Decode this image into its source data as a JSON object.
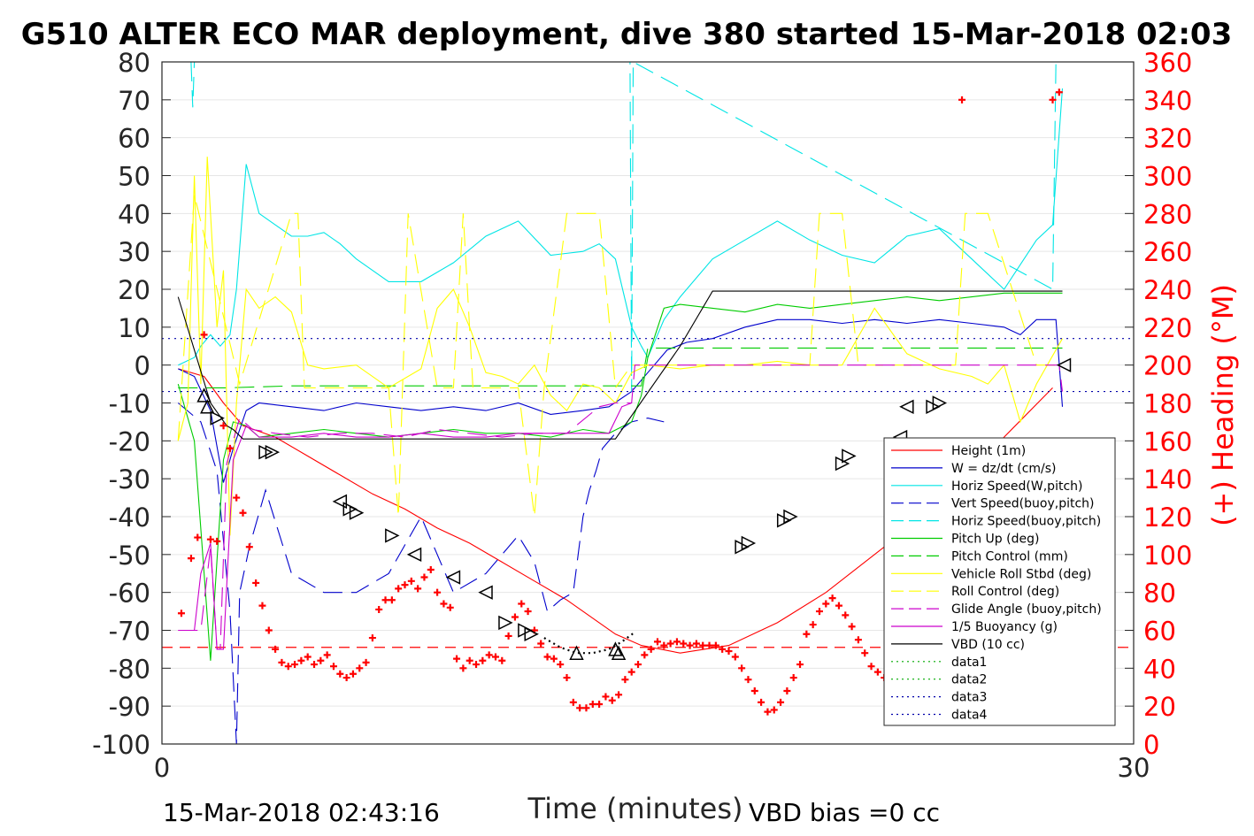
{
  "figure": {
    "title": "G510 ALTER ECO MAR deployment, dive 380 started 15-Mar-2018 02:03",
    "footer_left": "15-Mar-2018 02:43:16",
    "footer_right": "VBD bias =0 cc"
  },
  "colors": {
    "height": "#ff0000",
    "w": "#0000cc",
    "horiz_w": "#00e5e5",
    "vert_buoy": "#0000cc",
    "horiz_buoy": "#00e5e5",
    "pitch": "#00cc00",
    "pitch_ctrl": "#00cc00",
    "roll": "#ffff00",
    "roll_ctrl": "#ffff00",
    "glide": "#cc00cc",
    "buoy": "#cc00cc",
    "vbd": "#000000",
    "heading": "#ff0000",
    "right_axis": "#ff0000"
  },
  "chart_data": {
    "type": "line",
    "title": "G510 ALTER ECO MAR deployment, dive 380 started 15-Mar-2018 02:03",
    "xlabel": "Time (minutes)",
    "ylabel_right": "(+) Heading (°M)",
    "xlim": [
      0,
      30
    ],
    "ylim": [
      -100,
      80
    ],
    "y2lim": [
      0,
      360
    ],
    "xticks": [
      "0",
      "30"
    ],
    "yticks": [
      "80",
      "70",
      "60",
      "50",
      "40",
      "30",
      "20",
      "10",
      "0",
      "-10",
      "-20",
      "-30",
      "-40",
      "-50",
      "-60",
      "-70",
      "-80",
      "-90",
      "-100"
    ],
    "y2ticks": [
      "360",
      "340",
      "320",
      "300",
      "280",
      "260",
      "240",
      "220",
      "200",
      "180",
      "160",
      "140",
      "120",
      "100",
      "80",
      "60",
      "40",
      "20",
      "0"
    ],
    "grid": "horizontal",
    "legend_position": "right",
    "series": [
      {
        "name": "Height (1m)",
        "key": "height",
        "dash": "",
        "x": [
          0.5,
          1.3,
          1.9,
          2.5,
          3.5,
          4.5,
          5.5,
          6.5,
          7.5,
          8.5,
          9.5,
          10.5,
          11.5,
          12.5,
          13.5,
          14.0,
          14.8,
          16.0,
          17.5,
          19.0,
          20.5,
          22.0,
          23.5,
          25.0,
          26.0,
          27.5
        ],
        "y": [
          -1,
          -3,
          -10,
          -16,
          -19,
          -24,
          -29,
          -34,
          -38,
          -43,
          -47,
          -52,
          -57,
          -62,
          -68,
          -71,
          -74,
          -76,
          -74,
          -68,
          -60,
          -50,
          -40,
          -29,
          -19,
          -6
        ]
      },
      {
        "name": "W = dz/dt (cm/s)",
        "key": "w",
        "dash": "",
        "x": [
          0.5,
          1.0,
          1.5,
          1.9,
          2.2,
          2.6,
          3.0,
          4.0,
          5.0,
          6.0,
          7.0,
          8.0,
          9.0,
          10.0,
          11.0,
          12.0,
          13.0,
          13.8,
          14.5,
          15.0,
          15.6,
          16.2,
          17.0,
          18.0,
          19.0,
          20.0,
          21.0,
          22.0,
          23.0,
          24.0,
          25.0,
          26.0,
          26.5,
          27.0,
          27.6,
          27.8
        ],
        "y": [
          -1,
          -3,
          -12,
          -31,
          -22,
          -12,
          -10,
          -11,
          -12,
          -10,
          -11,
          -12,
          -11,
          -12,
          -10,
          -13,
          -12,
          -11,
          -7,
          -2,
          4,
          6,
          7,
          10,
          12,
          12,
          11,
          12,
          11,
          12,
          11,
          10,
          8,
          12,
          12,
          -11
        ]
      },
      {
        "name": "Horiz Speed(W,pitch)",
        "key": "horiz_w",
        "dash": "",
        "x": [
          0.5,
          1.0,
          1.2,
          1.5,
          1.8,
          2.1,
          2.3,
          2.6,
          3.0,
          3.5,
          4.0,
          4.5,
          5.0,
          5.5,
          6.0,
          7.0,
          8.0,
          9.0,
          10.0,
          11.0,
          12.0,
          13.0,
          13.5,
          14.0,
          14.5,
          14.8,
          15.0,
          15.5,
          16.0,
          17.0,
          18.0,
          19.0,
          20.0,
          21.0,
          22.0,
          23.0,
          24.0,
          25.0,
          26.0,
          27.0,
          27.5,
          27.8
        ],
        "y": [
          0,
          2,
          5,
          8,
          5,
          8,
          20,
          53,
          40,
          37,
          34,
          34,
          35,
          32,
          28,
          22,
          22,
          27,
          34,
          38,
          29,
          30,
          32,
          28,
          10,
          5,
          2,
          12,
          18,
          28,
          33,
          38,
          33,
          29,
          27,
          34,
          36,
          28,
          20,
          33,
          37,
          73
        ]
      },
      {
        "name": "Vert Speed(buoy,pitch)",
        "key": "vert_buoy",
        "dash": "22,10",
        "x": [
          0.5,
          1.2,
          1.7,
          2.1,
          2.3,
          2.4,
          2.7,
          3.2,
          4.0,
          5.0,
          6.0,
          7.0,
          8.0,
          9.0,
          10.0,
          11.0,
          11.5,
          11.9,
          12.3,
          12.7,
          13.0,
          13.2,
          13.4,
          13.6,
          14.0,
          14.5,
          15.0,
          15.5
        ],
        "y": [
          -10,
          -15,
          -28,
          -65,
          -100,
          -60,
          -48,
          -33,
          -55,
          -60,
          -60,
          -55,
          -40,
          -60,
          -55,
          -45,
          -52,
          -65,
          -62,
          -60,
          -40,
          -33,
          -28,
          -22,
          -18,
          -15,
          -14,
          -15
        ]
      },
      {
        "name": "Horiz Speed(buoy,pitch)",
        "key": "horiz_buoy",
        "dash": "22,10",
        "x": [
          0.9,
          0.95,
          1.0,
          14.45,
          14.5,
          14.55,
          27.5,
          27.6
        ],
        "y": [
          80,
          68,
          80,
          80,
          -7,
          80,
          20,
          80
        ]
      },
      {
        "name": "Pitch Up (deg)",
        "key": "pitch",
        "dash": "",
        "x": [
          0.5,
          1.0,
          1.5,
          1.9,
          2.2,
          2.6,
          3.0,
          4.0,
          5.0,
          6.0,
          7.0,
          8.0,
          9.0,
          10.0,
          11.0,
          12.0,
          13.0,
          13.8,
          14.5,
          14.8,
          15.0,
          15.5,
          16.0,
          17.0,
          18.0,
          19.0,
          20.0,
          21.0,
          22.0,
          23.0,
          24.0,
          25.0,
          26.0,
          27.0,
          27.8
        ],
        "y": [
          -5,
          -20,
          -78,
          -25,
          -15,
          -16,
          -19,
          -18,
          -17,
          -18,
          -19,
          -18,
          -17,
          -18,
          -18,
          -19,
          -17,
          -18,
          -15,
          -8,
          2,
          15,
          16,
          15,
          14,
          16,
          15,
          16,
          17,
          18,
          17,
          18,
          19,
          19,
          19
        ]
      },
      {
        "name": "Pitch Control (mm)",
        "key": "pitch_ctrl",
        "dash": "22,10",
        "x": [
          0.5,
          2.0,
          4.0,
          8.0,
          12.0,
          14.8,
          15.0,
          20.0,
          27.8
        ],
        "y": [
          -6,
          -6,
          -5.5,
          -5.5,
          -5.5,
          -5.5,
          4.5,
          4.5,
          4.5
        ]
      },
      {
        "name": "Vehicle Roll Stbd (deg)",
        "key": "roll",
        "dash": "",
        "x": [
          0.5,
          0.8,
          1.0,
          1.2,
          1.4,
          1.7,
          1.9,
          2.1,
          2.3,
          2.6,
          3.0,
          3.5,
          4.0,
          4.5,
          5.0,
          6.0,
          7.0,
          8.0,
          8.5,
          9.0,
          9.5,
          10.0,
          10.5,
          11.0,
          11.5,
          12.0,
          12.5,
          13.0,
          13.5,
          14.0,
          14.5,
          15.0,
          16.0,
          17.0,
          18.0,
          19.0,
          20.0,
          21.0,
          22.0,
          23.0,
          24.0,
          25.0,
          25.5,
          26.0,
          26.5,
          27.0,
          27.8
        ],
        "y": [
          -20,
          -10,
          50,
          -5,
          55,
          10,
          25,
          -45,
          -10,
          20,
          15,
          18,
          14,
          0,
          -1,
          0,
          -6,
          -1,
          15,
          20,
          10,
          -2,
          -3,
          -5,
          0,
          -8,
          -12,
          -5,
          -6,
          -10,
          -2,
          0,
          -1,
          0,
          0,
          1,
          0,
          0,
          15,
          3,
          -1,
          -3,
          -5,
          0,
          -15,
          -5,
          7
        ]
      },
      {
        "name": "Roll Control (deg)",
        "key": "roll_ctrl",
        "dash": "22,10",
        "x": [
          0.5,
          1.0,
          2.4,
          4.0,
          4.2,
          4.4,
          6.0,
          7.0,
          7.3,
          7.6,
          8.5,
          9.0,
          9.3,
          9.6,
          11.0,
          11.5,
          11.8,
          12.5,
          13.5,
          14.0,
          14.5,
          20.0,
          20.3,
          21.0,
          21.5,
          24.5,
          24.8,
          25.5,
          27.0,
          27.8
        ],
        "y": [
          -20,
          45,
          -5,
          40,
          40,
          -6,
          -6,
          -6,
          -40,
          40,
          -6,
          -6,
          40,
          -6,
          -6,
          -40,
          -6,
          40,
          40,
          -6,
          0,
          0,
          40,
          40,
          0,
          0,
          40,
          40,
          0,
          0
        ]
      },
      {
        "name": "Glide Angle (buoy,pitch)",
        "key": "glide",
        "dash": "22,10",
        "x": [
          0.5,
          1.2,
          1.5,
          1.7,
          1.8,
          2.0,
          2.4,
          2.8,
          3.5,
          4.5,
          5.5,
          6.5,
          7.5,
          8.5,
          9.5,
          10.5,
          11.5,
          12.5,
          13.5,
          14.0,
          14.5,
          14.6,
          16.0,
          20.0,
          27.7,
          27.8
        ],
        "y": [
          -70,
          -70,
          -48,
          -75,
          -75,
          -26,
          -14,
          -17,
          -18,
          -19,
          -18,
          -18,
          -19,
          -17,
          -18,
          -19,
          -18,
          -18,
          -11,
          -10,
          -10,
          0,
          0,
          0,
          0,
          -7
        ]
      },
      {
        "name": "1/5 Buoyancy (g)",
        "key": "buoy",
        "dash": "",
        "x": [
          0.5,
          1.0,
          1.2,
          1.5,
          1.7,
          1.9,
          2.2,
          2.6,
          3.0,
          4.0,
          5.0,
          6.0,
          7.0,
          8.0,
          9.0,
          10.0,
          11.0,
          12.0,
          13.0,
          13.8,
          14.2,
          14.5
        ],
        "y": [
          -70,
          -70,
          -55,
          -47,
          -75,
          -75,
          -25,
          -16,
          -19,
          -19,
          -18,
          -19,
          -19,
          -18,
          -19,
          -19,
          -18,
          -18,
          -18,
          -18,
          -11,
          -10
        ]
      },
      {
        "name": "VBD (10 cc)",
        "key": "vbd",
        "dash": "",
        "x": [
          0.5,
          1.5,
          2.0,
          2.2,
          2.5,
          5.0,
          10.0,
          13.0,
          14.0,
          16.0,
          17.0,
          20.0,
          25.0,
          27.8
        ],
        "y": [
          18,
          -10,
          -16,
          -17,
          -19.5,
          -19.5,
          -19.5,
          -19.5,
          -19.5,
          5,
          19.5,
          19.5,
          19.5,
          19.5
        ]
      },
      {
        "name": "data1",
        "key": "data1",
        "dash": "2,5",
        "x": [],
        "y": []
      },
      {
        "name": "data2",
        "key": "data2",
        "dash": "2,5",
        "x": [],
        "y": []
      },
      {
        "name": "data3",
        "key": "data3",
        "dash": "2,5",
        "x": [
          0,
          30
        ],
        "y": [
          7,
          7
        ]
      },
      {
        "name": "data4",
        "key": "data4",
        "dash": "2,5",
        "x": [
          0,
          30
        ],
        "y": [
          -7,
          -7
        ]
      }
    ],
    "pitch_reference": {
      "y": -74.5
    },
    "heading_points": {
      "x": [
        0.6,
        0.9,
        1.1,
        1.3,
        1.5,
        1.7,
        1.9,
        2.1,
        2.3,
        2.5,
        2.7,
        2.9,
        3.1,
        3.3,
        3.5,
        3.7,
        3.9,
        4.1,
        4.3,
        4.5,
        4.7,
        4.9,
        5.1,
        5.3,
        5.5,
        5.7,
        5.9,
        6.1,
        6.3,
        6.5,
        6.7,
        6.9,
        7.1,
        7.3,
        7.5,
        7.7,
        7.9,
        8.1,
        8.3,
        8.5,
        8.7,
        8.9,
        9.1,
        9.3,
        9.5,
        9.7,
        9.9,
        10.1,
        10.3,
        10.5,
        10.7,
        10.9,
        11.1,
        11.3,
        11.5,
        11.7,
        11.9,
        12.1,
        12.3,
        12.5,
        12.7,
        12.9,
        13.1,
        13.3,
        13.5,
        13.7,
        13.9,
        14.1,
        14.3,
        14.5,
        14.7,
        14.9,
        15.1,
        15.3,
        15.5,
        15.7,
        15.9,
        16.1,
        16.3,
        16.5,
        16.7,
        16.9,
        17.1,
        17.3,
        17.5,
        17.7,
        17.9,
        18.1,
        18.3,
        18.5,
        18.7,
        18.9,
        19.1,
        19.3,
        19.5,
        19.7,
        19.9,
        20.1,
        20.3,
        20.5,
        20.7,
        20.9,
        21.1,
        21.3,
        21.5,
        21.7,
        21.9,
        22.1,
        22.3,
        22.5,
        22.7,
        22.9,
        23.1,
        23.3,
        23.5,
        23.7,
        23.9,
        24.1,
        24.3,
        24.5,
        24.7,
        24.9,
        25.1,
        25.3,
        25.5,
        25.7,
        25.9,
        26.1,
        26.3,
        26.5,
        26.7,
        26.9,
        27.1,
        27.3,
        27.5,
        27.7
      ],
      "y": [
        69,
        98,
        109,
        216,
        108,
        107,
        168,
        156,
        130,
        122,
        104,
        85,
        73,
        60,
        50,
        43,
        41,
        42,
        44,
        46,
        42,
        44,
        47,
        41,
        37,
        35,
        37,
        40,
        43,
        56,
        71,
        76,
        76,
        82,
        84,
        86,
        82,
        88,
        92,
        80,
        74,
        72,
        45,
        40,
        44,
        42,
        44,
        47,
        46,
        44,
        57,
        67,
        74,
        70,
        60,
        53,
        46,
        45,
        42,
        35,
        22,
        19,
        19,
        21,
        21,
        25,
        23,
        26,
        34,
        38,
        42,
        47,
        50,
        54,
        52,
        53,
        54,
        53,
        52,
        53,
        52,
        52,
        52,
        50,
        49,
        46,
        40,
        34,
        28,
        22,
        17,
        18,
        22,
        28,
        35,
        42,
        58,
        63,
        70,
        74,
        77,
        73,
        68,
        62,
        55,
        48,
        41,
        38,
        35,
        32,
        36,
        40,
        52,
        57,
        62,
        65,
        72,
        77,
        82,
        69,
        340,
        80,
        80,
        80,
        80,
        85,
        85,
        85,
        88,
        88,
        90,
        95,
        95,
        100,
        340,
        344
      ],
      "right_axis": true
    },
    "height_markers": {
      "x": [
        1.3,
        1.4,
        1.7,
        3.2,
        3.4,
        5.5,
        5.8,
        6.0,
        7.1,
        7.8,
        9.0,
        10.0,
        10.6,
        11.2,
        11.4,
        12.8,
        14.0,
        14.1,
        17.9,
        18.1,
        19.2,
        19.4,
        21.0,
        21.2,
        22.8,
        23.0,
        23.8,
        24.0
      ],
      "y": [
        -8,
        -11,
        -14,
        -23,
        -23,
        -36,
        -38,
        -39,
        -45,
        -50,
        -56,
        -60,
        -68,
        -70,
        -71,
        -76,
        -75,
        -76,
        -48,
        -47,
        -41,
        -40,
        -26,
        -24,
        -19,
        -11,
        -11,
        -10
      ],
      "dir": [
        "up",
        "up",
        "right",
        "right",
        "right",
        "left",
        "right",
        "right",
        "right",
        "left",
        "left",
        "left",
        "right",
        "right",
        "right",
        "up",
        "up",
        "up",
        "right",
        "right",
        "right",
        "right",
        "right",
        "right",
        "left",
        "left",
        "right",
        "right"
      ]
    },
    "height_marker_end": {
      "x": 27.8,
      "y": 0
    },
    "height_dotted_bottom": {
      "x": [
        11.8,
        12.3,
        12.8,
        13.3,
        13.8,
        14.2,
        14.6
      ],
      "y": [
        -72,
        -74.5,
        -76,
        -76,
        -75,
        -73,
        -70.5
      ]
    },
    "legend": [
      "Height (1m)",
      "W = dz/dt (cm/s)",
      "Horiz Speed(W,pitch)",
      "Vert Speed(buoy,pitch)",
      "Horiz Speed(buoy,pitch)",
      "Pitch Up (deg)",
      "Pitch Control (mm)",
      "Vehicle Roll Stbd (deg)",
      "Roll Control (deg)",
      "Glide Angle (buoy,pitch)",
      "1/5 Buoyancy (g)",
      "VBD (10 cc)",
      "data1",
      "data2",
      "data3",
      "data4"
    ]
  }
}
